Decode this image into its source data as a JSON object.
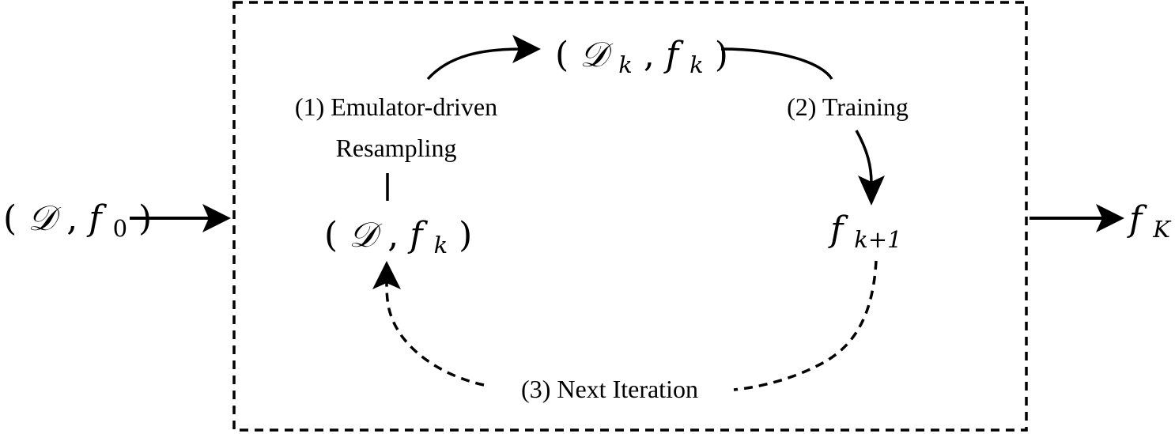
{
  "diagram": {
    "input": {
      "open": "(",
      "dataset": "𝒟",
      "sep": ", ",
      "model": "f",
      "model_sub": "0",
      "close": ")"
    },
    "output": {
      "model": "f",
      "model_sub": "K"
    },
    "node_top": {
      "open": "(",
      "dataset": "𝒟",
      "dataset_sub": "k",
      "sep": ", ",
      "model": "f",
      "model_sub": "k",
      "close": ")"
    },
    "node_left": {
      "open": "(",
      "dataset": "𝒟",
      "sep": ", ",
      "model": "f",
      "model_sub": "k",
      "close": ")"
    },
    "node_right": {
      "model": "f",
      "model_sub": "k+1"
    },
    "steps": {
      "resampling_line1": "(1) Emulator-driven",
      "resampling_line2": "Resampling",
      "training": "(2) Training",
      "next_iteration": "(3) Next Iteration"
    }
  }
}
